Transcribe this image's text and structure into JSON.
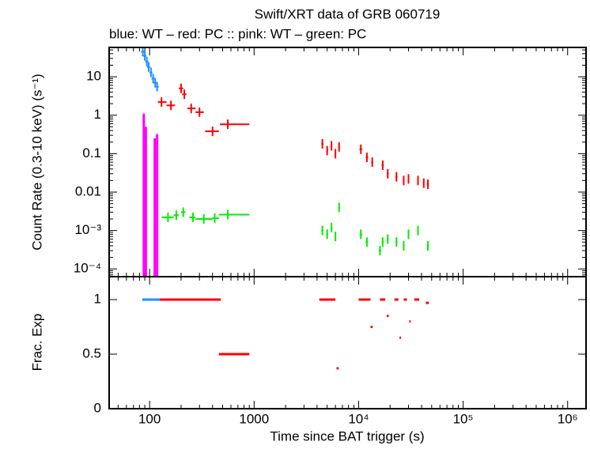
{
  "chart_data": [
    {
      "type": "scatter",
      "title": "Swift/XRT data of GRB 060719",
      "subtitle": "blue: WT  – red: PC  :: pink: WT  – green: PC",
      "y_label": "Count Rate (0.3-10 keV) (s⁻¹)",
      "log_x": true,
      "log_y": true,
      "xlim": [
        41,
        1500000
      ],
      "ylim": [
        6.3e-05,
        58
      ],
      "yticks": [
        10,
        1,
        0.1,
        0.01,
        {
          "value": 0.001,
          "label": "10⁻³"
        },
        {
          "value": 0.0001,
          "label": "10⁻⁴"
        }
      ],
      "series": [
        {
          "name": "WT",
          "color": "#1e90ff",
          "marker": "cross",
          "x": [
            86,
            90,
            94,
            98,
            103,
            108,
            113,
            118
          ],
          "values": [
            45,
            35,
            25,
            18,
            13,
            9,
            7,
            5.5
          ]
        },
        {
          "name": "WT",
          "color": "#ff00ff",
          "marker": "drop",
          "x": [
            88,
            92,
            112,
            118
          ],
          "values": [
            1.1,
            0.5,
            0.25,
            0.32
          ]
        },
        {
          "name": "PC",
          "color": "#ff0000",
          "marker": "cross",
          "x": [
            130,
            160,
            200,
            215,
            250,
            300,
            400,
            560,
            4500,
            5000,
            5500,
            6000,
            6500,
            10500,
            12000,
            13500,
            17000,
            19000,
            23000,
            27000,
            30000,
            37000,
            42000,
            46000
          ],
          "x_low": [
            120,
            145,
            190,
            205,
            230,
            275,
            340,
            470,
            4400,
            4900,
            5400,
            5900,
            6400,
            10200,
            11700,
            13200,
            16600,
            18600,
            22500,
            26500,
            29500,
            36500,
            41500,
            45000
          ],
          "x_high": [
            145,
            175,
            210,
            225,
            275,
            330,
            460,
            900,
            4600,
            5100,
            5600,
            6100,
            6600,
            10800,
            12300,
            13800,
            17400,
            19400,
            23500,
            27500,
            30500,
            37500,
            42500,
            47000
          ],
          "values": [
            2.2,
            1.8,
            5,
            3.5,
            1.5,
            1.2,
            0.38,
            0.58,
            0.18,
            0.12,
            0.16,
            0.1,
            0.15,
            0.13,
            0.08,
            0.06,
            0.05,
            0.03,
            0.025,
            0.02,
            0.022,
            0.02,
            0.017,
            0.016
          ]
        },
        {
          "name": "PC",
          "color": "#00ee00",
          "marker": "cross",
          "x": [
            150,
            180,
            210,
            260,
            330,
            420,
            560,
            4500,
            5000,
            5500,
            6000,
            6500,
            10500,
            12000,
            16000,
            17000,
            19000,
            23000,
            27000,
            30000,
            37000,
            46000
          ],
          "x_low": [
            130,
            170,
            200,
            240,
            275,
            400,
            460,
            4400,
            4900,
            5400,
            5900,
            6400,
            10200,
            11700,
            15600,
            16600,
            18600,
            22500,
            26500,
            29500,
            36500,
            45000
          ],
          "x_high": [
            170,
            190,
            220,
            275,
            400,
            460,
            900,
            4600,
            5100,
            5600,
            6100,
            6600,
            10800,
            12300,
            16400,
            17400,
            19400,
            23500,
            27500,
            30500,
            37500,
            47000
          ],
          "values": [
            0.0022,
            0.0025,
            0.003,
            0.0022,
            0.002,
            0.0021,
            0.0026,
            0.001,
            0.0008,
            0.0012,
            0.0007,
            0.004,
            0.0008,
            0.0005,
            0.0003,
            0.0005,
            0.0006,
            0.0005,
            0.0004,
            0.0008,
            0.001,
            0.0004
          ]
        }
      ]
    },
    {
      "type": "scatter",
      "x_label": "Time since BAT trigger (s)",
      "y_label": "Frac. Exp",
      "log_x": true,
      "log_y": false,
      "xlim": [
        41,
        1500000
      ],
      "ylim": [
        0,
        1.21
      ],
      "xticks": [
        100,
        1000,
        {
          "value": 10000,
          "label": "10⁴"
        },
        {
          "value": 100000,
          "label": "10⁵"
        },
        {
          "value": 1000000,
          "label": "10⁶"
        }
      ],
      "yticks": [
        0,
        0.5,
        1
      ],
      "series": [
        {
          "name": "WT",
          "color": "#1e90ff",
          "marker": "segment",
          "x_low": [
            85
          ],
          "x_high": [
            125
          ],
          "values": [
            1
          ]
        },
        {
          "name": "PC",
          "color": "#ff0000",
          "marker": "segment",
          "x_low": [
            125,
            460,
            4200,
            6150,
            10000,
            13000,
            16000,
            18600,
            22000,
            24600,
            27000,
            30500,
            34000,
            44000
          ],
          "x_high": [
            480,
            900,
            6000,
            6450,
            13000,
            13600,
            18000,
            19400,
            24000,
            25400,
            29000,
            31500,
            38000,
            47000
          ],
          "values": [
            1,
            0.5,
            1,
            0.37,
            1,
            0.75,
            1,
            0.85,
            1,
            0.65,
            1,
            0.8,
            1,
            0.97
          ]
        }
      ]
    }
  ]
}
